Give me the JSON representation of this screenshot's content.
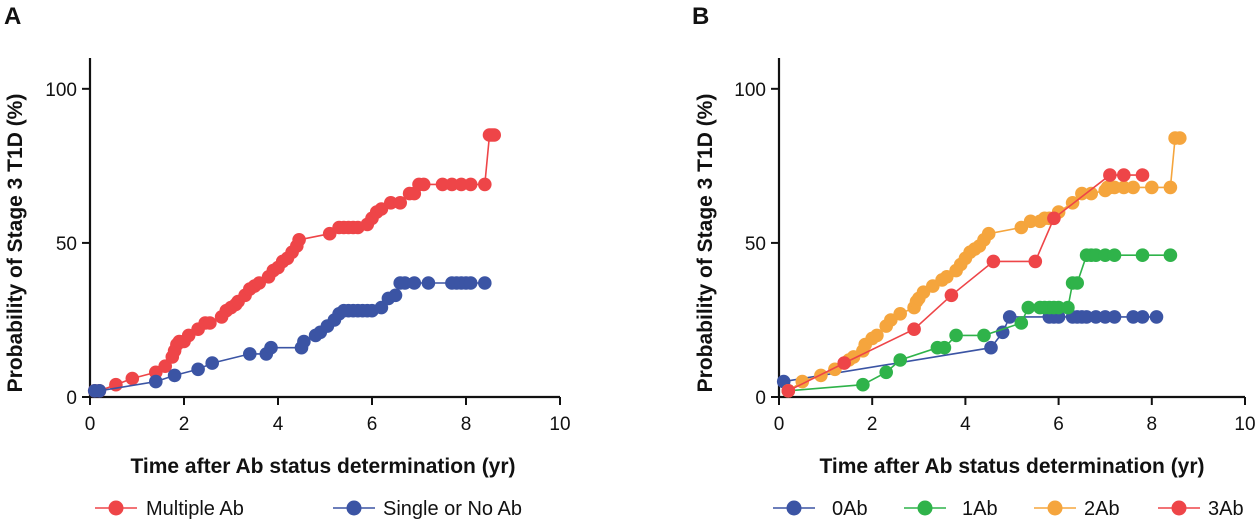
{
  "chart_data": [
    {
      "panel": "A",
      "type": "line",
      "step": false,
      "xlabel": "Time after Ab status determination (yr)",
      "ylabel": "Probability of Stage 3 T1D (%)",
      "xlim": [
        0,
        10
      ],
      "ylim": [
        0,
        110
      ],
      "xticks": [
        0,
        2,
        4,
        6,
        8,
        10
      ],
      "yticks": [
        0,
        50,
        100
      ],
      "grid": false,
      "legend": "bottom",
      "series": [
        {
          "name": "Multiple Ab",
          "color": "#ee4548",
          "x": [
            0.1,
            0.2,
            0.55,
            0.9,
            1.4,
            1.6,
            1.75,
            1.8,
            1.85,
            1.9,
            2.0,
            2.1,
            2.3,
            2.45,
            2.55,
            2.8,
            2.9,
            3.0,
            3.1,
            3.15,
            3.3,
            3.4,
            3.5,
            3.6,
            3.8,
            3.9,
            4.0,
            4.1,
            4.2,
            4.3,
            4.4,
            4.45,
            5.1,
            5.3,
            5.4,
            5.5,
            5.6,
            5.7,
            5.9,
            6.0,
            6.1,
            6.2,
            6.4,
            6.6,
            6.8,
            6.9,
            7.0,
            7.1,
            7.5,
            7.7,
            7.9,
            8.1,
            8.4,
            8.5,
            8.55,
            8.6
          ],
          "y": [
            2,
            2,
            4,
            6,
            8,
            10,
            13,
            15,
            17,
            18,
            18,
            20,
            22,
            24,
            24,
            26,
            28,
            29,
            30,
            31,
            33,
            35,
            36,
            37,
            39,
            41,
            42,
            44,
            45,
            47,
            49,
            51,
            53,
            55,
            55,
            55,
            55,
            55,
            56,
            58,
            60,
            61,
            63,
            63,
            66,
            66,
            69,
            69,
            69,
            69,
            69,
            69,
            69,
            85,
            85,
            85
          ]
        },
        {
          "name": "Single or No Ab",
          "color": "#3b54a4",
          "x": [
            0.1,
            0.2,
            1.4,
            1.8,
            2.3,
            2.6,
            3.4,
            3.75,
            3.85,
            4.5,
            4.55,
            4.8,
            4.9,
            5.05,
            5.2,
            5.3,
            5.4,
            5.5,
            5.6,
            5.7,
            5.8,
            5.9,
            6.0,
            6.2,
            6.35,
            6.5,
            6.6,
            6.7,
            6.9,
            7.2,
            7.7,
            7.8,
            7.9,
            8.0,
            8.1,
            8.4
          ],
          "y": [
            2,
            2,
            5,
            7,
            9,
            11,
            14,
            14,
            16,
            16,
            18,
            20,
            21,
            23,
            25,
            27,
            28,
            28,
            28,
            28,
            28,
            28,
            28,
            29,
            32,
            33,
            37,
            37,
            37,
            37,
            37,
            37,
            37,
            37,
            37,
            37
          ]
        }
      ]
    },
    {
      "panel": "B",
      "type": "line",
      "step": false,
      "xlabel": "Time after Ab status determination (yr)",
      "ylabel": "Probability of Stage 3 T1D (%)",
      "xlim": [
        0,
        10
      ],
      "ylim": [
        0,
        110
      ],
      "xticks": [
        0,
        2,
        4,
        6,
        8,
        10
      ],
      "yticks": [
        0,
        50,
        100
      ],
      "grid": false,
      "legend": "bottom",
      "series": [
        {
          "name": "0Ab",
          "color": "#3b54a4",
          "x": [
            0.1,
            4.55,
            4.8,
            4.95,
            5.8,
            5.9,
            6.0,
            6.3,
            6.4,
            6.5,
            6.6,
            6.8,
            7.0,
            7.2,
            7.6,
            7.8,
            8.1
          ],
          "y": [
            5,
            16,
            21,
            26,
            26,
            26,
            26,
            26,
            26,
            26,
            26,
            26,
            26,
            26,
            26,
            26,
            26
          ]
        },
        {
          "name": "1Ab",
          "color": "#2fb34a",
          "x": [
            0.2,
            1.8,
            2.3,
            2.6,
            3.4,
            3.55,
            3.8,
            4.4,
            5.2,
            5.35,
            5.6,
            5.7,
            5.8,
            5.9,
            6.0,
            6.2,
            6.3,
            6.4,
            6.6,
            6.7,
            6.8,
            7.0,
            7.2,
            7.8,
            8.4
          ],
          "y": [
            2,
            4,
            8,
            12,
            16,
            16,
            20,
            20,
            24,
            29,
            29,
            29,
            29,
            29,
            29,
            29,
            37,
            37,
            46,
            46,
            46,
            46,
            46,
            46,
            46
          ]
        },
        {
          "name": "2Ab",
          "color": "#f5a53d",
          "x": [
            0.2,
            0.5,
            0.9,
            1.2,
            1.5,
            1.6,
            1.8,
            1.85,
            2.0,
            2.1,
            2.3,
            2.4,
            2.6,
            2.9,
            2.95,
            3.0,
            3.1,
            3.3,
            3.5,
            3.6,
            3.8,
            3.9,
            4.0,
            4.1,
            4.2,
            4.3,
            4.4,
            4.5,
            5.2,
            5.4,
            5.6,
            5.7,
            5.8,
            6.0,
            6.3,
            6.5,
            6.7,
            7.0,
            7.05,
            7.1,
            7.2,
            7.4,
            7.6,
            8.0,
            8.4,
            8.5,
            8.6
          ],
          "y": [
            2,
            5,
            7,
            9,
            12,
            13,
            15,
            17,
            19,
            20,
            23,
            25,
            27,
            29,
            31,
            32,
            34,
            36,
            38,
            39,
            41,
            43,
            45,
            47,
            48,
            49,
            51,
            53,
            55,
            57,
            57,
            58,
            58,
            60,
            63,
            66,
            66,
            67,
            68,
            68,
            68,
            68,
            68,
            68,
            68,
            84,
            84
          ]
        },
        {
          "name": "3Ab",
          "color": "#ee4548",
          "x": [
            0.2,
            1.4,
            2.9,
            3.7,
            4.6,
            5.5,
            5.9,
            7.1,
            7.4,
            7.8
          ],
          "y": [
            2,
            11,
            22,
            33,
            44,
            44,
            58,
            72,
            72,
            72
          ]
        }
      ]
    }
  ]
}
